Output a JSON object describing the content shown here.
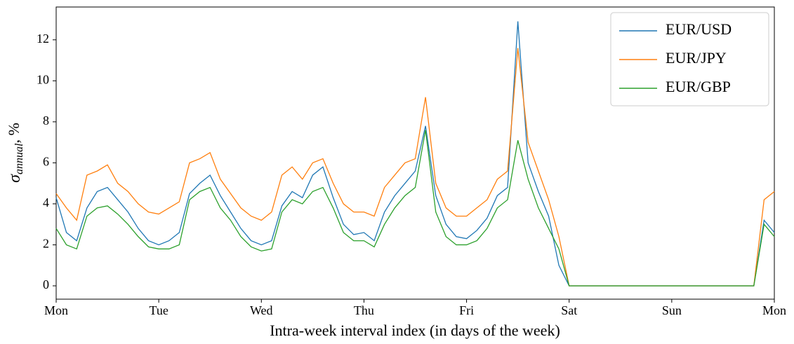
{
  "chart_data": {
    "type": "line",
    "x_label": "Intra-week interval index (in days of the week)",
    "y_label_symbol": "σ",
    "y_label_subscript": "annual",
    "y_label_unit": ", %",
    "x": [
      0,
      0.1,
      0.2,
      0.3,
      0.4,
      0.5,
      0.6,
      0.7,
      0.8,
      0.9,
      1,
      1.1,
      1.2,
      1.3,
      1.4,
      1.5,
      1.6,
      1.7,
      1.8,
      1.9,
      2,
      2.1,
      2.2,
      2.3,
      2.4,
      2.5,
      2.6,
      2.7,
      2.8,
      2.9,
      3,
      3.1,
      3.2,
      3.3,
      3.4,
      3.5,
      3.6,
      3.7,
      3.8,
      3.9,
      4,
      4.1,
      4.2,
      4.3,
      4.4,
      4.5,
      4.6,
      4.7,
      4.8,
      4.9,
      5,
      5.1,
      5.2,
      5.3,
      5.4,
      5.5,
      5.6,
      5.7,
      5.8,
      5.9,
      6,
      6.1,
      6.2,
      6.3,
      6.4,
      6.5,
      6.6,
      6.7,
      6.8,
      6.9,
      7
    ],
    "series": [
      {
        "name": "EUR/USD",
        "color": "#1f77b4",
        "values": [
          4.3,
          2.6,
          2.2,
          3.8,
          4.6,
          4.8,
          4.2,
          3.6,
          2.8,
          2.2,
          2.0,
          2.2,
          2.6,
          4.5,
          5.0,
          5.4,
          4.4,
          3.6,
          2.8,
          2.2,
          2.0,
          2.2,
          3.9,
          4.6,
          4.3,
          5.4,
          5.8,
          4.3,
          3.0,
          2.5,
          2.6,
          2.2,
          3.6,
          4.4,
          5.0,
          5.6,
          7.8,
          4.4,
          3.0,
          2.4,
          2.3,
          2.7,
          3.3,
          4.4,
          4.8,
          12.9,
          6.0,
          4.6,
          3.4,
          1.0,
          0,
          0,
          0,
          0,
          0,
          0,
          0,
          0,
          0,
          0,
          0,
          0,
          0,
          0,
          0,
          0,
          0,
          0,
          0,
          3.2,
          2.6
        ]
      },
      {
        "name": "EUR/JPY",
        "color": "#ff7f0e",
        "values": [
          4.5,
          3.8,
          3.2,
          5.4,
          5.6,
          5.9,
          5.0,
          4.6,
          4.0,
          3.6,
          3.5,
          3.8,
          4.1,
          6.0,
          6.2,
          6.5,
          5.2,
          4.5,
          3.8,
          3.4,
          3.2,
          3.6,
          5.4,
          5.8,
          5.2,
          6.0,
          6.2,
          5.0,
          4.0,
          3.6,
          3.6,
          3.4,
          4.8,
          5.4,
          6.0,
          6.2,
          9.2,
          5.0,
          3.8,
          3.4,
          3.4,
          3.8,
          4.2,
          5.2,
          5.6,
          11.6,
          7.0,
          5.6,
          4.2,
          2.4,
          0,
          0,
          0,
          0,
          0,
          0,
          0,
          0,
          0,
          0,
          0,
          0,
          0,
          0,
          0,
          0,
          0,
          0,
          0,
          4.2,
          4.6
        ]
      },
      {
        "name": "EUR/GBP",
        "color": "#2ca02c",
        "values": [
          2.8,
          2.0,
          1.8,
          3.4,
          3.8,
          3.9,
          3.5,
          3.0,
          2.4,
          1.9,
          1.8,
          1.8,
          2.0,
          4.2,
          4.6,
          4.8,
          3.8,
          3.2,
          2.4,
          1.9,
          1.7,
          1.8,
          3.6,
          4.2,
          4.0,
          4.6,
          4.8,
          3.8,
          2.6,
          2.2,
          2.2,
          1.9,
          3.0,
          3.8,
          4.4,
          4.8,
          7.6,
          3.6,
          2.4,
          2.0,
          2.0,
          2.2,
          2.8,
          3.8,
          4.2,
          7.1,
          5.2,
          3.8,
          2.8,
          1.8,
          0,
          0,
          0,
          0,
          0,
          0,
          0,
          0,
          0,
          0,
          0,
          0,
          0,
          0,
          0,
          0,
          0,
          0,
          0,
          3.0,
          2.4
        ]
      }
    ],
    "xlim": [
      0,
      7
    ],
    "xticks": [
      {
        "value": 0,
        "label": "Mon"
      },
      {
        "value": 1,
        "label": "Tue"
      },
      {
        "value": 2,
        "label": "Wed"
      },
      {
        "value": 3,
        "label": "Thu"
      },
      {
        "value": 4,
        "label": "Fri"
      },
      {
        "value": 5,
        "label": "Sat"
      },
      {
        "value": 6,
        "label": "Sun"
      },
      {
        "value": 7,
        "label": "Mon"
      }
    ],
    "ylim": [
      -0.65,
      13.6
    ],
    "yticks": [
      0,
      2,
      4,
      6,
      8,
      10,
      12
    ],
    "legend": "upper right"
  }
}
